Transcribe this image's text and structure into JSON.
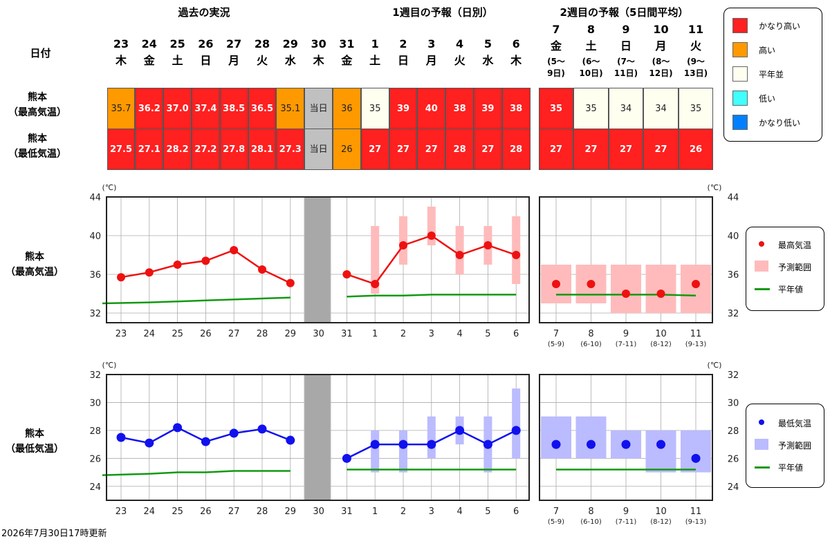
{
  "headers": {
    "past": "過去の実況",
    "week1": "1週目の予報（日別）",
    "week2": "2週目の予報（5日間平均）",
    "date_label": "日付"
  },
  "row_labels": {
    "max_l1": "熊本",
    "max_l2": "（最高気温）",
    "min_l1": "熊本",
    "min_l2": "（最低気温）"
  },
  "days": [
    {
      "d": "23",
      "w": "木"
    },
    {
      "d": "24",
      "w": "金"
    },
    {
      "d": "25",
      "w": "土"
    },
    {
      "d": "26",
      "w": "日"
    },
    {
      "d": "27",
      "w": "月"
    },
    {
      "d": "28",
      "w": "火"
    },
    {
      "d": "29",
      "w": "水"
    },
    {
      "d": "30",
      "w": "木"
    },
    {
      "d": "31",
      "w": "金"
    },
    {
      "d": "1",
      "w": "土"
    },
    {
      "d": "2",
      "w": "日"
    },
    {
      "d": "3",
      "w": "月"
    },
    {
      "d": "4",
      "w": "火"
    },
    {
      "d": "5",
      "w": "水"
    },
    {
      "d": "6",
      "w": "木"
    }
  ],
  "week2_days": [
    {
      "d": "7",
      "w": "金",
      "r1": "(5〜",
      "r2": "9日)",
      "tick": "(5-9)"
    },
    {
      "d": "8",
      "w": "土",
      "r1": "(6〜",
      "r2": "10日)",
      "tick": "(6-10)"
    },
    {
      "d": "9",
      "w": "日",
      "r1": "(7〜",
      "r2": "11日)",
      "tick": "(7-11)"
    },
    {
      "d": "10",
      "w": "月",
      "r1": "(8〜",
      "r2": "12日)",
      "tick": "(8-12)"
    },
    {
      "d": "11",
      "w": "火",
      "r1": "(9〜",
      "r2": "13日)",
      "tick": "(9-13)"
    }
  ],
  "table": {
    "max": [
      "35.7",
      "36.2",
      "37.0",
      "37.4",
      "38.5",
      "36.5",
      "35.1",
      "当日",
      "36",
      "35",
      "39",
      "40",
      "38",
      "39",
      "38"
    ],
    "max_cls": [
      "orange",
      "red",
      "red",
      "red",
      "red",
      "red",
      "orange",
      "gray",
      "orange",
      "white",
      "red",
      "red",
      "red",
      "red",
      "red"
    ],
    "min": [
      "27.5",
      "27.1",
      "28.2",
      "27.2",
      "27.8",
      "28.1",
      "27.3",
      "当日",
      "26",
      "27",
      "27",
      "27",
      "28",
      "27",
      "28"
    ],
    "min_cls": [
      "red",
      "red",
      "red",
      "red",
      "red",
      "red",
      "red",
      "gray",
      "orange",
      "red",
      "red",
      "red",
      "red",
      "red",
      "red"
    ],
    "w2_max": [
      "35",
      "35",
      "34",
      "34",
      "35"
    ],
    "w2_max_cls": [
      "red",
      "white",
      "white",
      "white",
      "white"
    ],
    "w2_min": [
      "27",
      "27",
      "27",
      "27",
      "26"
    ],
    "w2_min_cls": [
      "red",
      "red",
      "red",
      "red",
      "red"
    ]
  },
  "legend_class": [
    {
      "label": "かなり高い",
      "color": "#ff2020"
    },
    {
      "label": "高い",
      "color": "#ff9900"
    },
    {
      "label": "平年並",
      "color": "#fffff0"
    },
    {
      "label": "低い",
      "color": "#40ffff"
    },
    {
      "label": "かなり低い",
      "color": "#0080ff"
    }
  ],
  "colors": {
    "red": "#ff2020",
    "orange": "#ff9900",
    "white": "#fffff0",
    "gray": "#c0c0c0",
    "max_line": "#ee1111",
    "max_range": "#ffbbbb",
    "min_line": "#1111ee",
    "min_range": "#bbbbff",
    "normal": "#119911"
  },
  "legend_max": {
    "point": "最高気温",
    "range": "予測範囲",
    "normal": "平年値"
  },
  "legend_min": {
    "point": "最低気温",
    "range": "予測範囲",
    "normal": "平年値"
  },
  "unit": "(℃)",
  "footer": "2026年7月30日17時更新",
  "chart_data": [
    {
      "type": "line",
      "ylim": [
        31,
        44
      ],
      "yticks": [
        32,
        36,
        40,
        44
      ],
      "categories": [
        "23",
        "24",
        "25",
        "26",
        "27",
        "28",
        "29",
        "30",
        "31",
        "1",
        "2",
        "3",
        "4",
        "5",
        "6",
        "7",
        "8",
        "9",
        "10",
        "11"
      ],
      "x2_labels": [
        "(5-9)",
        "(6-10)",
        "(7-11)",
        "(8-12)",
        "(9-13)"
      ],
      "observed": [
        35.7,
        36.2,
        37.0,
        37.4,
        38.5,
        36.5,
        35.1
      ],
      "forecast": [
        36,
        35,
        39,
        40,
        38,
        39,
        38
      ],
      "forecast_range": [
        null,
        [
          34,
          41
        ],
        [
          37,
          42
        ],
        [
          39,
          43
        ],
        [
          36,
          41
        ],
        [
          37,
          41
        ],
        [
          35,
          42
        ]
      ],
      "week2": [
        35,
        35,
        34,
        34,
        35
      ],
      "week2_range": [
        [
          33,
          37
        ],
        [
          33,
          37
        ],
        [
          32,
          37
        ],
        [
          32,
          37
        ],
        [
          32,
          37
        ]
      ],
      "normal_past": [
        33.0,
        33.1,
        33.2,
        33.3,
        33.4,
        33.5,
        33.6
      ],
      "normal_week1": [
        33.7,
        33.8,
        33.8,
        33.9,
        33.9,
        33.9,
        33.9
      ],
      "normal_week2": [
        33.9,
        33.9,
        33.9,
        33.9,
        33.8
      ]
    },
    {
      "type": "line",
      "ylim": [
        23,
        32
      ],
      "yticks": [
        24,
        26,
        28,
        30,
        32
      ],
      "categories": [
        "23",
        "24",
        "25",
        "26",
        "27",
        "28",
        "29",
        "30",
        "31",
        "1",
        "2",
        "3",
        "4",
        "5",
        "6",
        "7",
        "8",
        "9",
        "10",
        "11"
      ],
      "x2_labels": [
        "(5-9)",
        "(6-10)",
        "(7-11)",
        "(8-12)",
        "(9-13)"
      ],
      "observed": [
        27.5,
        27.1,
        28.2,
        27.2,
        27.8,
        28.1,
        27.3
      ],
      "forecast": [
        26,
        27,
        27,
        27,
        28,
        27,
        28
      ],
      "forecast_range": [
        null,
        [
          25,
          28
        ],
        [
          25,
          28
        ],
        [
          26,
          29
        ],
        [
          27,
          29
        ],
        [
          25,
          29
        ],
        [
          26,
          31
        ]
      ],
      "week2": [
        27,
        27,
        27,
        27,
        26
      ],
      "week2_range": [
        [
          26,
          29
        ],
        [
          26,
          29
        ],
        [
          26,
          28
        ],
        [
          25,
          28
        ],
        [
          25,
          28
        ]
      ],
      "normal_past": [
        24.8,
        24.9,
        25.0,
        25.0,
        25.1,
        25.1,
        25.1
      ],
      "normal_week1": [
        25.2,
        25.2,
        25.2,
        25.2,
        25.2,
        25.2,
        25.2
      ],
      "normal_week2": [
        25.2,
        25.2,
        25.2,
        25.2,
        25.2
      ]
    }
  ]
}
